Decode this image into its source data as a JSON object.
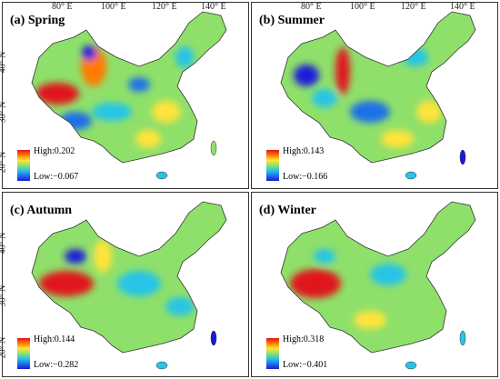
{
  "panels": [
    {
      "label": "(a) Spring",
      "high": "High:0.202",
      "low": "Low:−0.067"
    },
    {
      "label": "(b) Summer",
      "high": "High:0.143",
      "low": "Low:−0.166"
    },
    {
      "label": "(c) Autumn",
      "high": "High:0.144",
      "low": "Low:−0.282"
    },
    {
      "label": "(d) Winter",
      "high": "High:0.318",
      "low": "Low:−0.401"
    }
  ],
  "lon_ticks": [
    "80° E",
    "100° E",
    "120° E",
    "140° E"
  ],
  "lat_ticks": [
    "40° N",
    "30° N",
    "20° N"
  ],
  "colors": {
    "high": "#e0141e",
    "mid": "#ffe43a",
    "low": "#1a1ad8",
    "base": "#8fe06a"
  }
}
